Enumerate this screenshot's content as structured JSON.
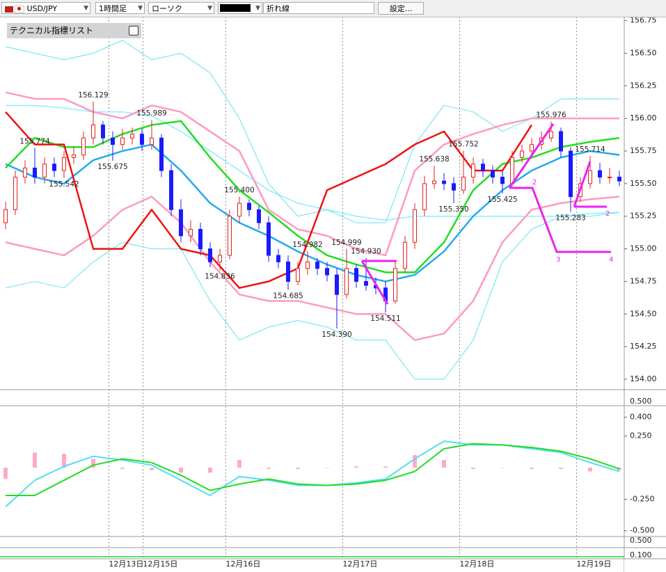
{
  "toolbar": {
    "symbol": "USD/JPY",
    "timeframe": "1時間足",
    "chart_style": "ローソク",
    "line_style": "折れ線",
    "settings": "設定..."
  },
  "indicator_panel": {
    "title": "テクニカル指標リスト"
  },
  "extra_axis_labels": [
    "0.500",
    "0.500",
    "0.100"
  ],
  "pattern_labels": [
    "2",
    "2",
    "3",
    "4"
  ],
  "chart_data": [
    {
      "type": "candlestick",
      "xlim": [
        -0.57,
        63.5
      ],
      "ylim": [
        153.92,
        156.78
      ],
      "yticks": [
        {
          "value": 156.75,
          "label": "156.75"
        },
        {
          "value": 156.5,
          "label": "156.50"
        },
        {
          "value": 156.25,
          "label": "156.25"
        },
        {
          "value": 156.0,
          "label": "156.00"
        },
        {
          "value": 155.75,
          "label": "155.75"
        },
        {
          "value": 155.5,
          "label": "155.50"
        },
        {
          "value": 155.25,
          "label": "155.25"
        },
        {
          "value": 155.0,
          "label": "155.00"
        },
        {
          "value": 154.75,
          "label": "154.75"
        },
        {
          "value": 154.5,
          "label": "154.50"
        },
        {
          "value": 154.25,
          "label": "154.25"
        },
        {
          "value": 154.0,
          "label": "154.00"
        }
      ],
      "xticks": [
        {
          "value": 10.6,
          "label": "12月13日"
        },
        {
          "value": 14.1,
          "label": "12月15日"
        },
        {
          "value": 22.6,
          "label": "12月16日"
        },
        {
          "value": 34.6,
          "label": "12月17日"
        },
        {
          "value": 46.6,
          "label": "12月18日"
        },
        {
          "value": 58.6,
          "label": "12月19日"
        }
      ],
      "up_color": "#e02020",
      "down_color": "#1a1aff",
      "open": [
        155.2,
        155.3,
        155.55,
        155.62,
        155.55,
        155.65,
        155.6,
        155.7,
        155.72,
        155.85,
        155.95,
        155.85,
        155.8,
        155.85,
        155.88,
        155.8,
        155.85,
        155.6,
        155.3,
        155.1,
        155.15,
        155.0,
        154.9,
        154.95,
        155.25,
        155.35,
        155.3,
        155.2,
        154.95,
        154.9,
        154.75,
        154.85,
        154.9,
        154.85,
        154.8,
        154.65,
        154.85,
        154.75,
        154.72,
        154.7,
        154.6,
        154.85,
        155.05,
        155.3,
        155.5,
        155.52,
        155.5,
        155.45,
        155.55,
        155.65,
        155.6,
        155.55,
        155.5,
        155.7,
        155.75,
        155.8,
        155.85,
        155.9,
        155.75,
        155.4,
        155.5,
        155.6,
        155.55,
        155.55
      ],
      "high": [
        155.36,
        155.6,
        155.68,
        155.774,
        155.7,
        155.7,
        155.75,
        155.78,
        155.9,
        156.129,
        155.98,
        155.9,
        155.92,
        155.93,
        155.92,
        155.989,
        155.88,
        155.65,
        155.38,
        155.22,
        155.2,
        155.05,
        155.0,
        155.3,
        155.4,
        155.38,
        155.33,
        155.25,
        155.0,
        154.95,
        154.9,
        154.982,
        154.93,
        154.9,
        154.85,
        154.999,
        154.88,
        154.93,
        154.78,
        154.75,
        154.9,
        155.1,
        155.35,
        155.56,
        155.638,
        155.58,
        155.55,
        155.752,
        155.7,
        155.69,
        155.64,
        155.6,
        155.75,
        155.8,
        155.85,
        155.9,
        155.976,
        155.93,
        155.78,
        155.55,
        155.714,
        155.66,
        155.62,
        155.6
      ],
      "low": [
        155.15,
        155.26,
        155.5,
        155.5,
        155.5,
        155.55,
        155.542,
        155.65,
        155.68,
        155.8,
        155.8,
        155.675,
        155.76,
        155.8,
        155.75,
        155.76,
        155.55,
        155.25,
        155.05,
        155.05,
        154.95,
        154.86,
        154.836,
        154.92,
        155.2,
        155.25,
        155.15,
        154.9,
        154.85,
        154.685,
        154.72,
        154.8,
        154.8,
        154.75,
        154.39,
        154.62,
        154.7,
        154.68,
        154.65,
        154.511,
        154.58,
        154.82,
        155.0,
        155.25,
        155.46,
        155.45,
        155.35,
        155.42,
        155.5,
        155.55,
        155.5,
        155.425,
        155.48,
        155.66,
        155.7,
        155.76,
        155.82,
        155.7,
        155.283,
        155.36,
        155.46,
        155.5,
        155.5,
        155.48
      ],
      "close": [
        155.3,
        155.55,
        155.62,
        155.55,
        155.65,
        155.6,
        155.7,
        155.72,
        155.85,
        155.95,
        155.85,
        155.8,
        155.85,
        155.88,
        155.8,
        155.85,
        155.6,
        155.3,
        155.1,
        155.15,
        155.0,
        154.9,
        154.95,
        155.25,
        155.35,
        155.3,
        155.2,
        154.95,
        154.9,
        154.75,
        154.85,
        154.9,
        154.85,
        154.8,
        154.65,
        154.85,
        154.75,
        154.72,
        154.7,
        154.6,
        154.85,
        155.05,
        155.3,
        155.5,
        155.52,
        155.5,
        155.45,
        155.55,
        155.65,
        155.6,
        155.55,
        155.5,
        155.7,
        155.75,
        155.8,
        155.85,
        155.9,
        155.75,
        155.4,
        155.5,
        155.6,
        155.55,
        155.55,
        155.52
      ],
      "annotations": [
        {
          "x": 9,
          "y": 156.129
        },
        {
          "x": 3,
          "y": 155.774
        },
        {
          "x": 6,
          "y": 155.542
        },
        {
          "x": 11,
          "y": 155.675
        },
        {
          "x": 15,
          "y": 155.989
        },
        {
          "x": 24,
          "y": 155.4,
          "label": "155.400"
        },
        {
          "x": 22,
          "y": 154.836
        },
        {
          "x": 31,
          "y": 154.982
        },
        {
          "x": 35,
          "y": 154.999
        },
        {
          "x": 29,
          "y": 154.685
        },
        {
          "x": 34,
          "y": 154.39,
          "label": "154.390"
        },
        {
          "x": 37,
          "y": 154.93,
          "label": "154.930"
        },
        {
          "x": 39,
          "y": 154.511
        },
        {
          "x": 44,
          "y": 155.638
        },
        {
          "x": 46,
          "y": 155.35,
          "label": "155.350"
        },
        {
          "x": 47,
          "y": 155.752
        },
        {
          "x": 51,
          "y": 155.425
        },
        {
          "x": 56,
          "y": 155.976
        },
        {
          "x": 60,
          "y": 155.714
        },
        {
          "x": 58,
          "y": 155.283
        }
      ],
      "lines": {
        "x": [
          0,
          3,
          6,
          9,
          12,
          15,
          18,
          21,
          24,
          27,
          30,
          33,
          36,
          39,
          42,
          45,
          48,
          51,
          54,
          57,
          60,
          63
        ],
        "series": [
          {
            "color": "#88eeff",
            "width": 1.5,
            "values": [
              156.1,
              156.1,
              156.08,
              156.05,
              156.05,
              156.02,
              155.9,
              155.75,
              155.6,
              155.45,
              155.35,
              155.3,
              155.25,
              155.22,
              155.25,
              155.25,
              155.25,
              155.25,
              155.25,
              155.25,
              155.27,
              155.28
            ]
          },
          {
            "color": "#66e0f0",
            "width": 1,
            "values": [
              156.55,
              156.5,
              156.45,
              156.5,
              156.6,
              156.45,
              156.5,
              156.35,
              156.0,
              155.5,
              155.25,
              155.3,
              155.2,
              155.2,
              155.8,
              156.1,
              156.05,
              155.9,
              156.0,
              156.15,
              156.15,
              156.15
            ]
          },
          {
            "color": "#66e0f0",
            "width": 1,
            "values": [
              154.7,
              154.75,
              154.7,
              154.9,
              155.05,
              155.0,
              155.0,
              154.6,
              154.3,
              154.4,
              154.45,
              154.4,
              154.3,
              154.3,
              154.0,
              154.0,
              154.3,
              154.9,
              155.15,
              155.25,
              155.25,
              155.28
            ]
          },
          {
            "color": "#ff99c0",
            "width": 2.5,
            "values": [
              156.2,
              156.15,
              156.15,
              156.05,
              156.0,
              156.1,
              156.05,
              155.9,
              155.75,
              155.3,
              155.15,
              155.1,
              155.0,
              154.95,
              155.6,
              155.8,
              155.88,
              155.95,
              156.0,
              156.0,
              156.0,
              156.0
            ]
          },
          {
            "color": "#ff99c0",
            "width": 2.5,
            "values": [
              155.05,
              155.0,
              154.95,
              155.1,
              155.3,
              155.4,
              155.2,
              154.9,
              154.65,
              154.6,
              154.6,
              154.55,
              154.5,
              154.5,
              154.3,
              154.35,
              154.6,
              155.05,
              155.3,
              155.35,
              155.38,
              155.4
            ]
          },
          {
            "color": "#22aaee",
            "width": 2.5,
            "values": [
              155.65,
              155.55,
              155.5,
              155.68,
              155.75,
              155.8,
              155.6,
              155.35,
              155.2,
              155.1,
              154.98,
              154.88,
              154.8,
              154.75,
              154.8,
              154.98,
              155.25,
              155.45,
              155.6,
              155.7,
              155.75,
              155.72
            ]
          },
          {
            "color": "#22dd22",
            "width": 2.5,
            "values": [
              155.62,
              155.85,
              155.78,
              155.78,
              155.88,
              155.95,
              155.98,
              155.7,
              155.45,
              155.28,
              155.1,
              154.95,
              154.88,
              154.82,
              154.82,
              155.05,
              155.45,
              155.65,
              155.7,
              155.78,
              155.82,
              155.85
            ]
          },
          {
            "color": "#ee1111",
            "width": 2.5,
            "values": [
              156.05,
              155.8,
              155.8,
              155.0,
              155.0,
              155.3,
              155.0,
              154.95,
              154.7,
              154.75,
              154.85,
              155.45,
              155.55,
              155.65,
              155.8,
              155.9,
              155.6,
              155.6,
              155.95,
              null,
              null,
              null
            ]
          }
        ]
      }
    },
    {
      "type": "macd",
      "xlim": [
        -0.57,
        63.5
      ],
      "ylim": [
        -0.54,
        0.48
      ],
      "yticks": [
        {
          "value": 0.4,
          "label": "0.400"
        },
        {
          "value": 0.25,
          "label": "0.250"
        },
        {
          "value": -0.25,
          "label": "-0.250"
        },
        {
          "value": -0.5,
          "label": "-0.500"
        }
      ],
      "x": [
        0,
        3,
        6,
        9,
        12,
        15,
        18,
        21,
        24,
        27,
        30,
        33,
        36,
        39,
        42,
        45,
        48,
        51,
        54,
        57,
        60,
        63
      ],
      "histogram": {
        "color": "#ffaac8",
        "values": [
          -0.09,
          0.12,
          0.11,
          0.07,
          -0.01,
          -0.02,
          -0.04,
          -0.04,
          0.06,
          -0.01,
          -0.01,
          0,
          0.01,
          0.01,
          0.1,
          0.06,
          -0.01,
          0,
          -0.01,
          -0.01,
          -0.03,
          -0.02
        ]
      },
      "series": [
        {
          "color": "#55ddf0",
          "values": [
            -0.31,
            -0.1,
            0.01,
            0.09,
            0.06,
            0.02,
            -0.1,
            -0.22,
            -0.07,
            -0.1,
            -0.14,
            -0.14,
            -0.12,
            -0.09,
            0.07,
            0.21,
            0.18,
            0.18,
            0.15,
            0.12,
            0.04,
            -0.03
          ]
        },
        {
          "color": "#22dd22",
          "values": [
            -0.22,
            -0.22,
            -0.1,
            0.02,
            0.07,
            0.04,
            -0.06,
            -0.18,
            -0.13,
            -0.09,
            -0.13,
            -0.14,
            -0.13,
            -0.1,
            -0.03,
            0.15,
            0.19,
            0.18,
            0.16,
            0.13,
            0.07,
            -0.01
          ]
        }
      ]
    }
  ]
}
